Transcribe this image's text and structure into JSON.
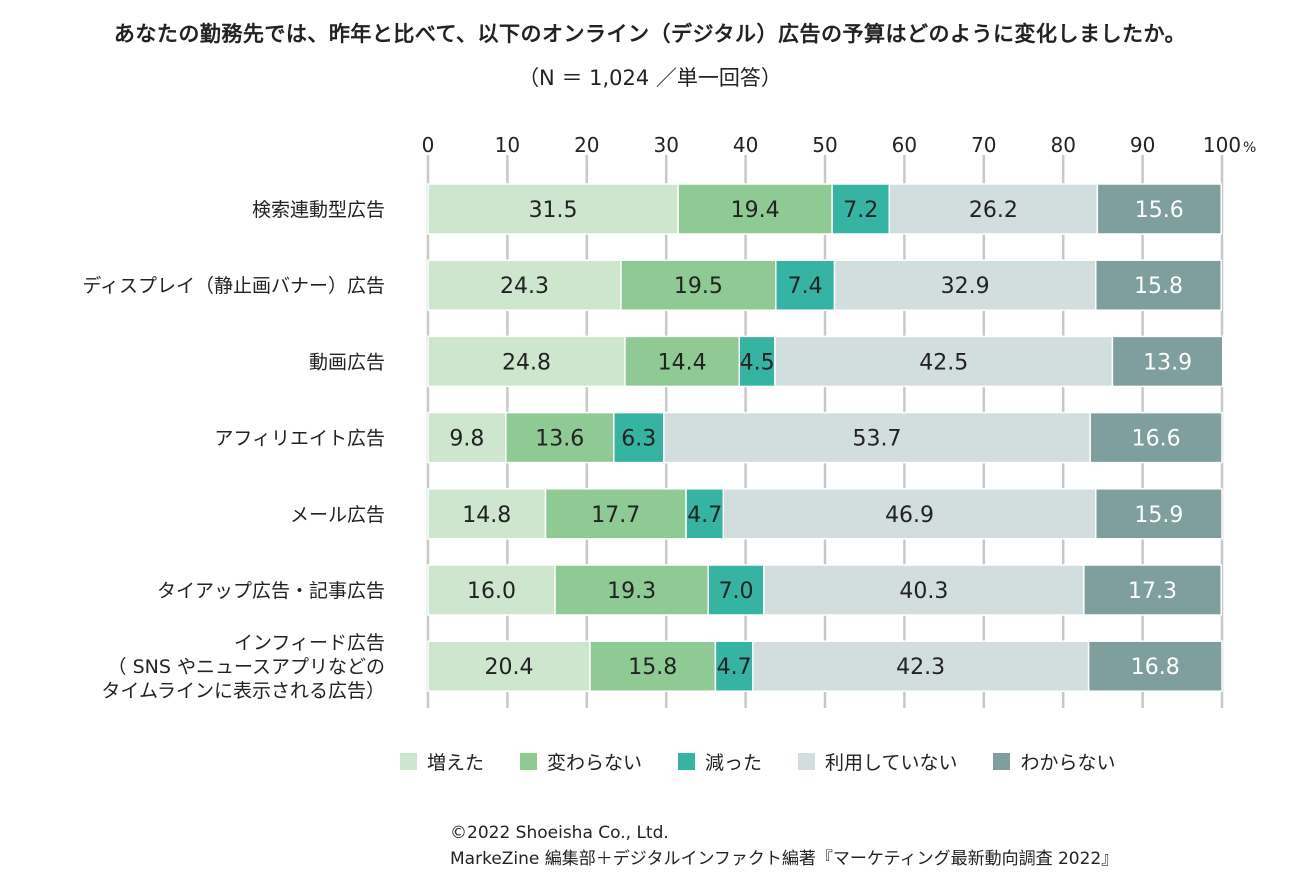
{
  "title": "あなたの勤務先では、昨年と比べて、以下のオンライン（デジタル）広告の予算はどのように変化しましたか。",
  "subtitle": "（N ＝ 1,024 ／単一回答）",
  "footer": {
    "line1": "©2022 Shoeisha Co., Ltd.",
    "line2": "MarkeZine 編集部＋デジタルインファクト編著『マーケティング最新動向調査 2022』"
  },
  "chart_data": {
    "type": "bar",
    "orientation": "horizontal",
    "stacked": true,
    "xlim": [
      0,
      100
    ],
    "ticks": [
      "0",
      "10",
      "20",
      "30",
      "40",
      "50",
      "60",
      "70",
      "80",
      "90",
      "100"
    ],
    "unit": "%",
    "categories": [
      [
        "検索連動型広告"
      ],
      [
        "ディスプレイ（静止画バナー）広告"
      ],
      [
        "動画広告"
      ],
      [
        "アフィリエイト広告"
      ],
      [
        "メール広告"
      ],
      [
        "タイアップ広告・記事広告"
      ],
      [
        "インフィード広告",
        "（ SNS やニュースアプリなどの",
        "タイムラインに表示される広告）"
      ]
    ],
    "series": [
      {
        "name": "増えた",
        "color": "#cde6cd",
        "text_color": "#222222",
        "values": [
          31.5,
          24.3,
          24.8,
          9.8,
          14.8,
          16.0,
          20.4
        ]
      },
      {
        "name": "変わらない",
        "color": "#8fca95",
        "text_color": "#222222",
        "values": [
          19.4,
          19.5,
          14.4,
          13.6,
          17.7,
          19.3,
          15.8
        ]
      },
      {
        "name": "減った",
        "color": "#35b3a3",
        "text_color": "#222222",
        "values": [
          7.2,
          7.4,
          4.5,
          6.3,
          4.7,
          7.0,
          4.7
        ]
      },
      {
        "name": "利用していない",
        "color": "#d1dedd",
        "text_color": "#222222",
        "values": [
          26.2,
          32.9,
          42.5,
          53.7,
          46.9,
          40.3,
          42.3
        ]
      },
      {
        "name": "わからない",
        "color": "#7e9f9d",
        "text_color": "#ffffff",
        "values": [
          15.6,
          15.8,
          13.9,
          16.6,
          15.9,
          17.3,
          16.8
        ]
      }
    ],
    "legend": "bottom"
  }
}
